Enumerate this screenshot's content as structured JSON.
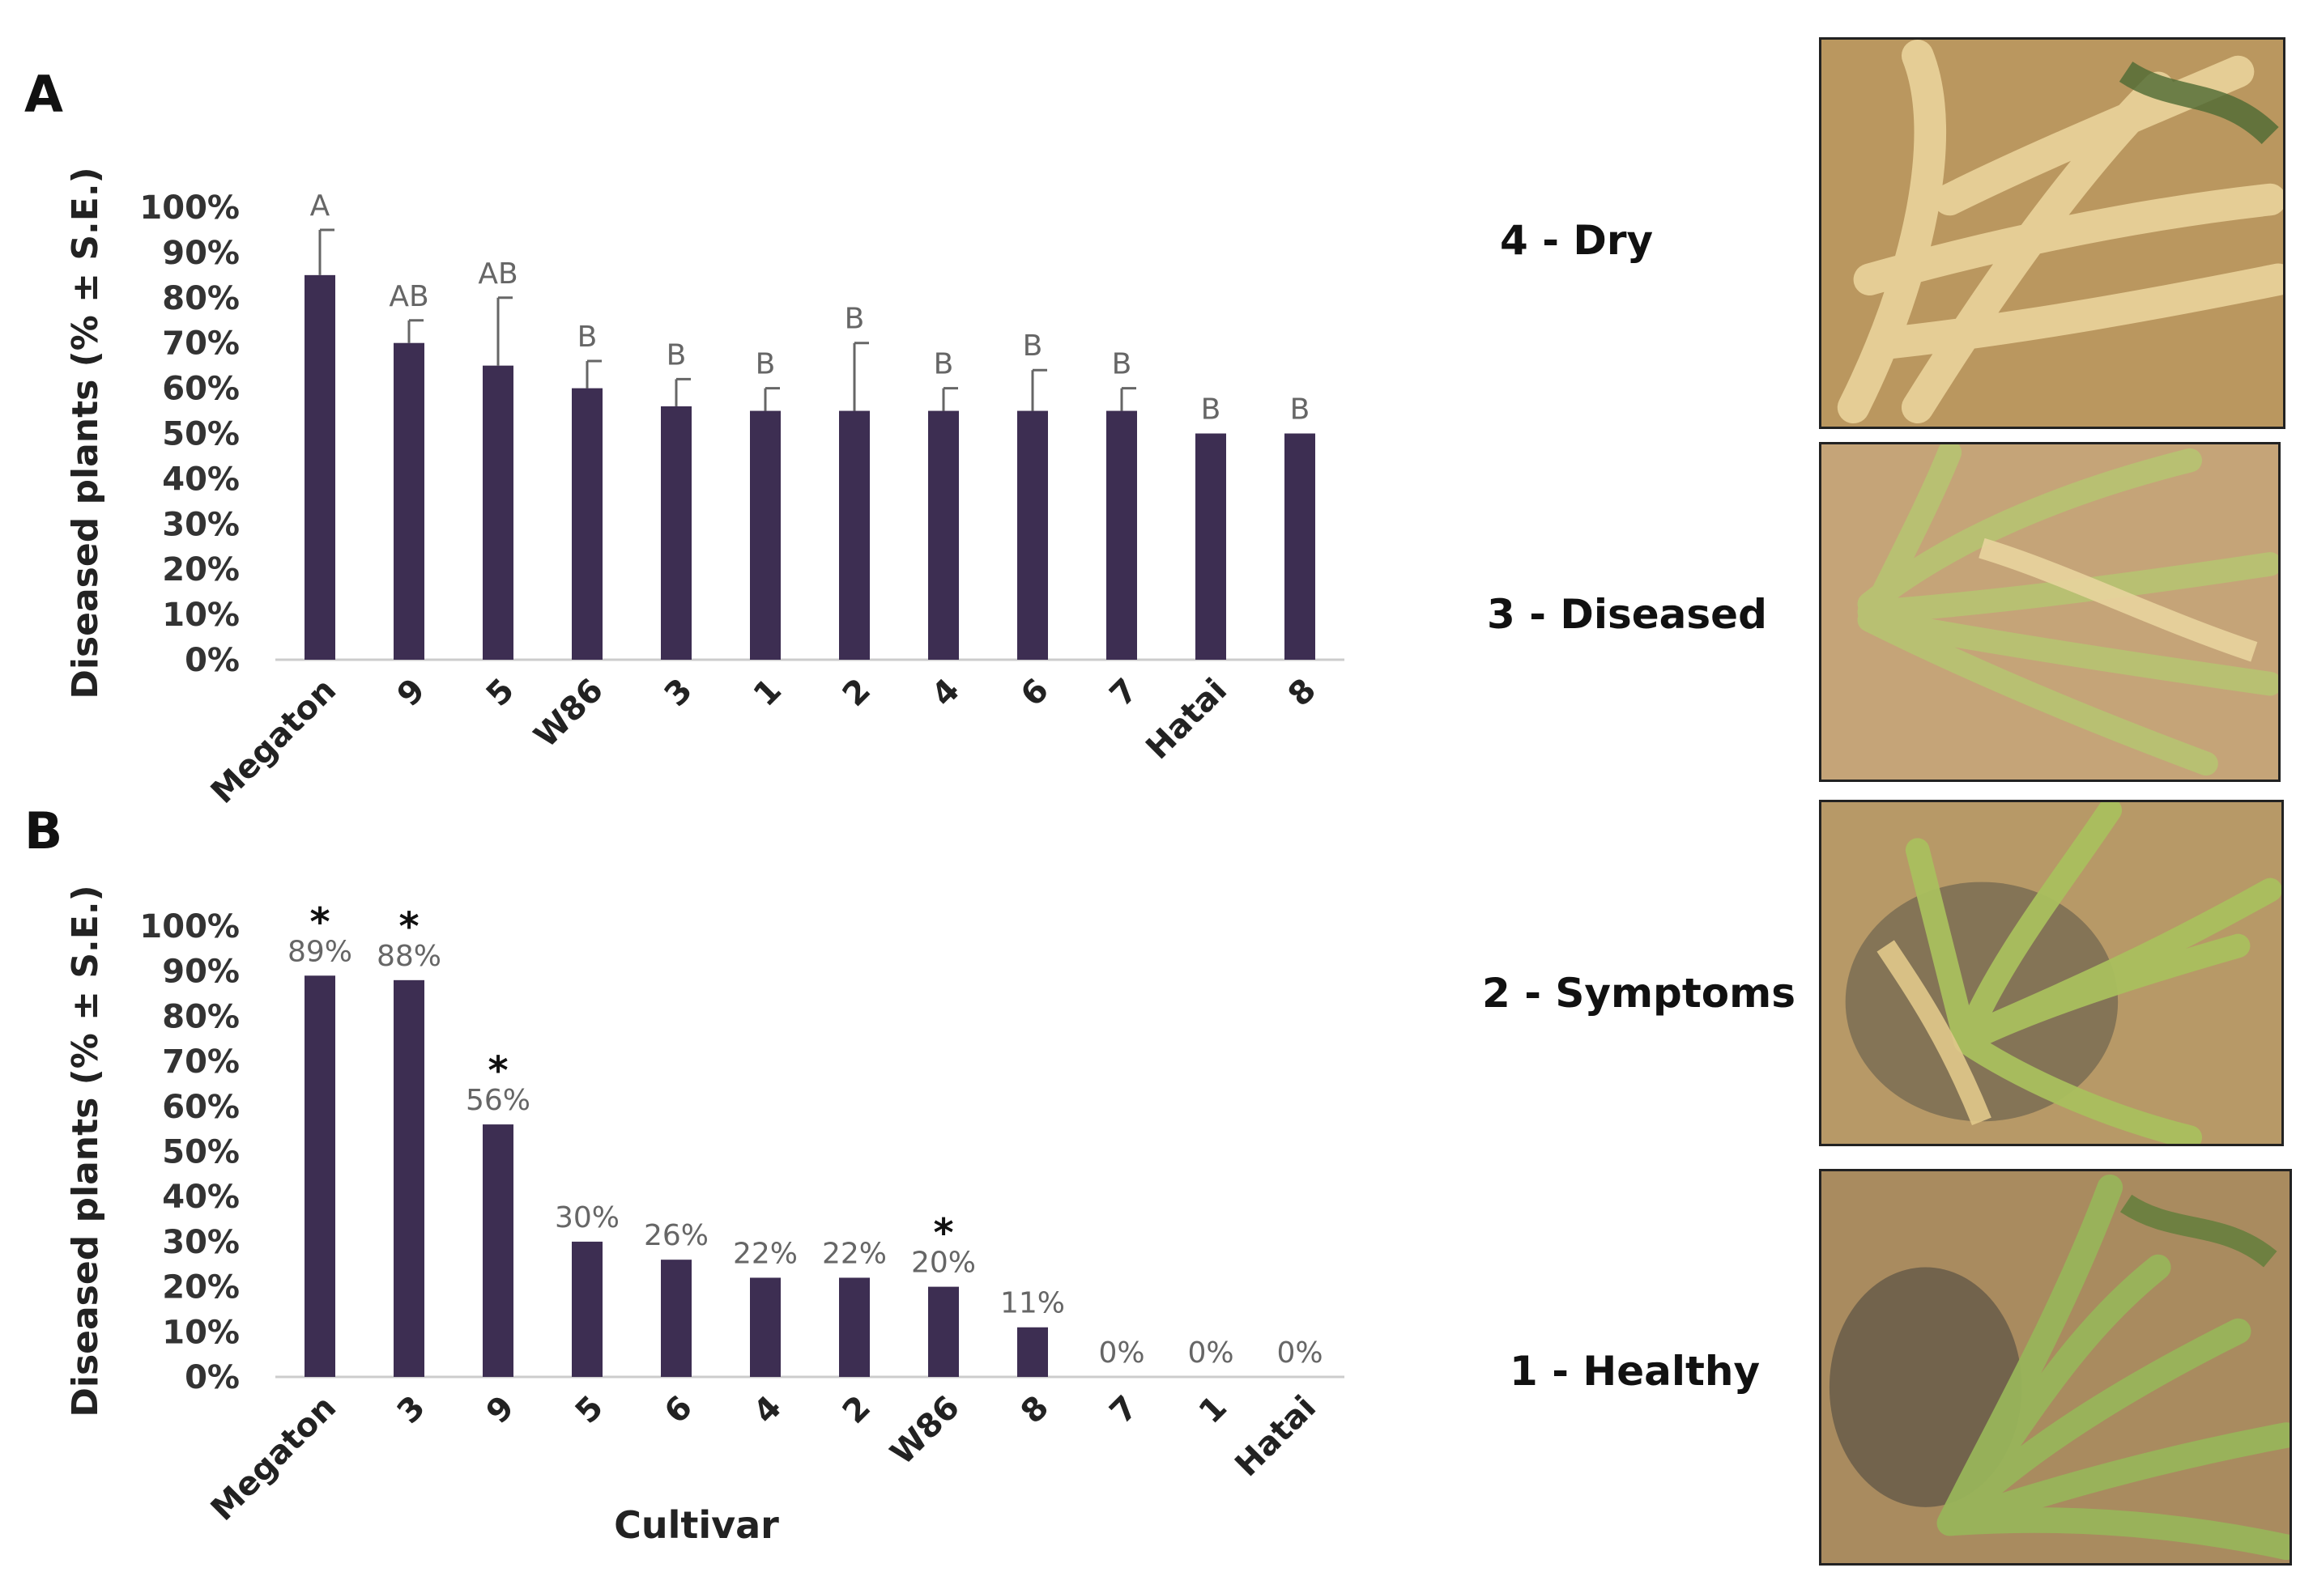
{
  "chart_data": [
    {
      "panel": "A",
      "type": "bar",
      "ylabel": "Diseased plants (% ± S.E.)",
      "xlabel": "",
      "ylim": [
        0,
        100
      ],
      "yticks": [
        "0%",
        "10%",
        "20%",
        "30%",
        "40%",
        "50%",
        "60%",
        "70%",
        "80%",
        "90%",
        "100%"
      ],
      "categories": [
        "Megaton",
        "9",
        "5",
        "W86",
        "3",
        "1",
        "2",
        "4",
        "6",
        "7",
        "Hatai",
        "8"
      ],
      "values": [
        85,
        70,
        65,
        60,
        56,
        55,
        55,
        55,
        55,
        55,
        50,
        50
      ],
      "errors": [
        10,
        5,
        15,
        6,
        6,
        5,
        15,
        5,
        9,
        5,
        0,
        0
      ],
      "labels": [
        "A",
        "AB",
        "AB",
        "B",
        "B",
        "B",
        "B",
        "B",
        "B",
        "B",
        "B",
        "B"
      ],
      "bar_color": "#3d2e52"
    },
    {
      "panel": "B",
      "type": "bar",
      "ylabel": "Diseased plants (% ± S.E.)",
      "xlabel": "Cultivar",
      "ylim": [
        0,
        100
      ],
      "yticks": [
        "0%",
        "10%",
        "20%",
        "30%",
        "40%",
        "50%",
        "60%",
        "70%",
        "80%",
        "90%",
        "100%"
      ],
      "categories": [
        "Megaton",
        "3",
        "9",
        "5",
        "6",
        "4",
        "2",
        "W86",
        "8",
        "7",
        "1",
        "Hatai"
      ],
      "values": [
        89,
        88,
        56,
        30,
        26,
        22,
        22,
        20,
        11,
        0,
        0,
        0
      ],
      "labels": [
        "89%",
        "88%",
        "56%",
        "30%",
        "26%",
        "22%",
        "22%",
        "20%",
        "11%",
        "0%",
        "0%",
        "0%"
      ],
      "significant": [
        true,
        true,
        true,
        false,
        false,
        false,
        false,
        true,
        false,
        false,
        false,
        false
      ],
      "significance_marker": "*",
      "bar_color": "#3d2e52"
    }
  ],
  "photos": [
    {
      "label": "4 - Dry",
      "tone": "#d8c48a"
    },
    {
      "label": "3 - Diseased",
      "tone": "#c9c284"
    },
    {
      "label": "2 - Symptoms",
      "tone": "#b8b96f"
    },
    {
      "label": "1 - Healthy",
      "tone": "#a3b064"
    }
  ]
}
